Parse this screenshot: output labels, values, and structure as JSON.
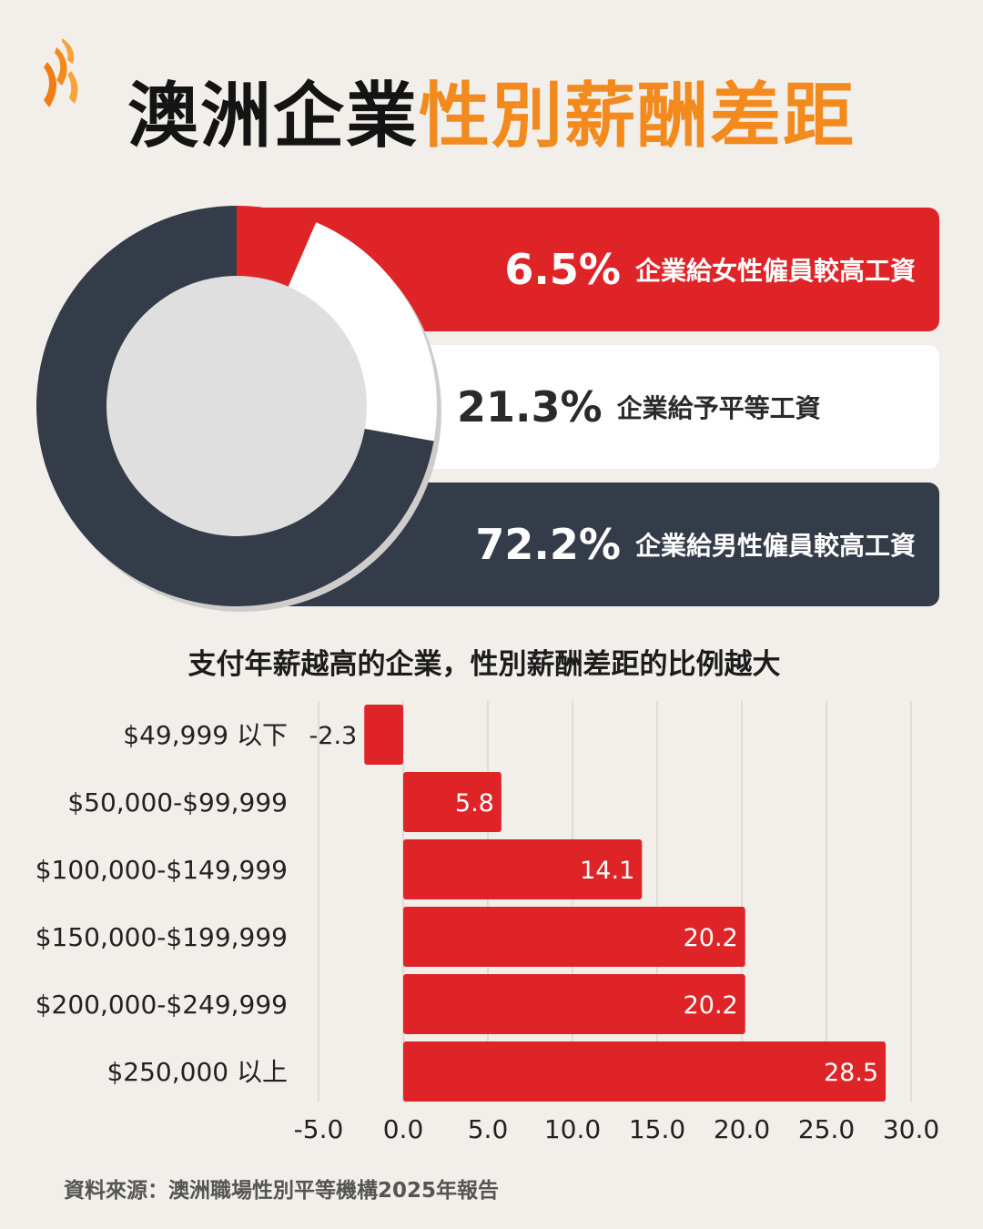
{
  "header": {
    "title_part1": "澳洲企業",
    "title_part2": "性別薪酬差距",
    "logo_icon": "sbs-logo-icon"
  },
  "colors": {
    "red": "#df2428",
    "dark": "#343b49",
    "orange": "#f28a1e",
    "white": "#ffffff",
    "donut_hole": "#e0dfe0"
  },
  "summary": {
    "items": [
      {
        "pct": "6.5%",
        "label": "企業給女性僱員較高工資",
        "value": 6.5
      },
      {
        "pct": "21.3%",
        "label": "企業給予平等工資",
        "value": 21.3
      },
      {
        "pct": "72.2%",
        "label": "企業給男性僱員較高工資",
        "value": 72.2
      }
    ]
  },
  "chart_data": [
    {
      "type": "pie",
      "title": "澳洲企業性別薪酬差距",
      "categories": [
        "企業給女性僱員較高工資",
        "企業給予平等工資",
        "企業給男性僱員較高工資"
      ],
      "values": [
        6.5,
        21.3,
        72.2
      ]
    },
    {
      "type": "bar",
      "orientation": "horizontal",
      "title": "支付年薪越高的企業，性別薪酬差距的比例越大",
      "categories": [
        "$49,999 以下",
        "$50,000-$99,999",
        "$100,000-$149,999",
        "$150,000-$199,999",
        "$200,000-$249,999",
        "$250,000 以上"
      ],
      "values": [
        -2.3,
        5.8,
        14.1,
        20.2,
        20.2,
        28.5
      ],
      "value_labels": [
        "-2.3",
        "5.8",
        "14.1",
        "20.2",
        "20.2",
        "28.5"
      ],
      "xlim": [
        -5,
        30
      ],
      "xticks": [
        "-5.0",
        "0.0",
        "5.0",
        "10.0",
        "15.0",
        "20.0",
        "25.0",
        "30.0"
      ],
      "xtick_values": [
        -5,
        0,
        5,
        10,
        15,
        20,
        25,
        30
      ],
      "grid": true,
      "xlabel": "",
      "ylabel": ""
    }
  ],
  "footer": {
    "source": "資料來源：澳洲職場性別平等機構2025年報告"
  }
}
